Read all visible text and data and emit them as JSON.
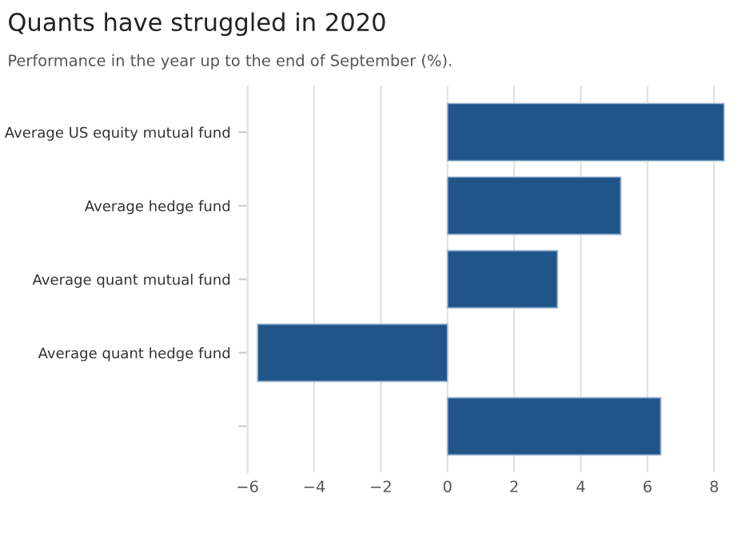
{
  "chart_data": {
    "type": "bar",
    "orientation": "horizontal",
    "title": "Quants have struggled in 2020",
    "subtitle": "Performance in the year up to the end of September (%).",
    "categories": [
      "Average US equity mutual fund",
      "Average hedge fund",
      "Average quant mutual fund",
      "Average quant hedge fund",
      null
    ],
    "values": [
      8.3,
      5.2,
      3.3,
      -5.7,
      6.4
    ],
    "color": "#20558a",
    "xlim": [
      -6,
      8.4
    ],
    "xticks": [
      {
        "value": -6,
        "label": "−6"
      },
      {
        "value": -4,
        "label": "−4"
      },
      {
        "value": -2,
        "label": "−2"
      },
      0,
      2,
      4,
      6,
      8
    ],
    "grid": "x"
  }
}
